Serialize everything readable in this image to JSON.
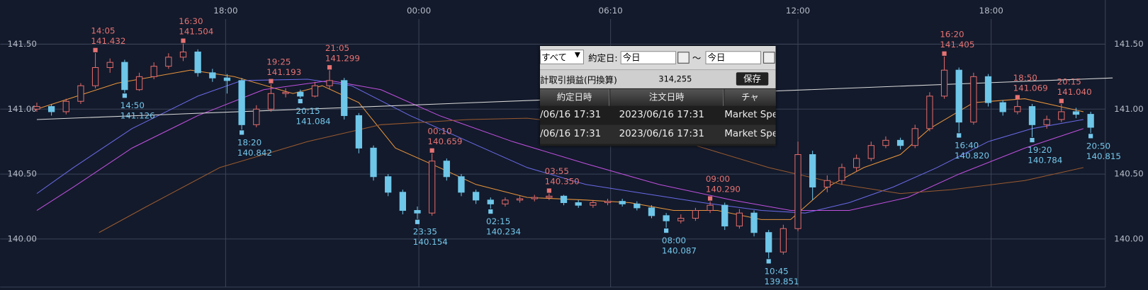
{
  "chart_data": {
    "type": "candlestick",
    "xlim": [
      -2.5,
      73
    ],
    "ylim": [
      139.63,
      141.84
    ],
    "xticks": [
      {
        "value": 12.9,
        "label": "18:00"
      },
      {
        "value": 26.1,
        "label": "00:00"
      },
      {
        "value": 39.2,
        "label": "06:10"
      },
      {
        "value": 52,
        "label": "12:00"
      },
      {
        "value": 65.2,
        "label": "18:00"
      }
    ],
    "yticks": [
      {
        "value": 140,
        "label": "140.00"
      },
      {
        "value": 140.5,
        "label": "140.50"
      },
      {
        "value": 141,
        "label": "141.00"
      },
      {
        "value": 141.5,
        "label": "141.50"
      }
    ],
    "grid": true,
    "up_color": "#e06a6a",
    "down_color": "#6ec6e8",
    "open": [
      141.0,
      141.02,
      140.98,
      141.06,
      141.18,
      141.32,
      141.36,
      141.15,
      141.25,
      141.33,
      141.4,
      141.44,
      141.28,
      141.24,
      141.22,
      140.88,
      141.0,
      141.12,
      141.13,
      141.1,
      141.18,
      141.22,
      140.95,
      140.7,
      140.48,
      140.36,
      140.22,
      140.2,
      140.6,
      140.48,
      140.36,
      140.3,
      140.27,
      140.3,
      140.31,
      140.32,
      140.33,
      140.28,
      140.26,
      140.28,
      140.29,
      140.27,
      140.24,
      140.18,
      140.14,
      140.16,
      140.22,
      140.26,
      140.1,
      140.2,
      140.05,
      139.9,
      140.08,
      140.65,
      140.4,
      140.45,
      140.55,
      140.62,
      140.72,
      140.76,
      140.72,
      140.85,
      141.1,
      141.3,
      140.9,
      141.25,
      141.05,
      140.98,
      141.02,
      140.88,
      140.92,
      140.98,
      140.96
    ],
    "high": [
      141.05,
      141.04,
      141.08,
      141.2,
      141.432,
      141.39,
      141.38,
      141.28,
      141.36,
      141.43,
      141.504,
      141.46,
      141.31,
      141.27,
      141.24,
      141.03,
      141.193,
      141.16,
      141.15,
      141.21,
      141.299,
      141.24,
      140.97,
      140.72,
      140.5,
      140.38,
      140.25,
      140.659,
      140.62,
      140.5,
      140.38,
      140.32,
      140.32,
      140.33,
      140.34,
      140.35,
      140.34,
      140.3,
      140.3,
      140.31,
      140.31,
      140.29,
      140.26,
      140.2,
      140.19,
      140.24,
      140.29,
      140.28,
      140.23,
      140.22,
      140.07,
      140.11,
      140.75,
      140.68,
      140.49,
      140.58,
      140.65,
      140.75,
      140.79,
      140.78,
      140.88,
      141.13,
      141.405,
      141.32,
      141.28,
      141.27,
      141.07,
      141.069,
      141.04,
      140.95,
      141.04,
      141.01,
      140.98
    ],
    "low": [
      140.98,
      140.95,
      140.96,
      141.04,
      141.16,
      141.28,
      141.126,
      141.14,
      141.23,
      141.31,
      141.37,
      141.25,
      141.21,
      141.12,
      140.842,
      140.86,
      140.98,
      141.09,
      141.084,
      141.09,
      141.15,
      140.92,
      140.66,
      140.45,
      140.33,
      140.19,
      140.154,
      140.18,
      140.45,
      140.33,
      140.27,
      140.234,
      140.25,
      140.28,
      140.29,
      140.3,
      140.26,
      140.24,
      140.24,
      140.26,
      140.25,
      140.22,
      140.16,
      140.087,
      140.12,
      140.14,
      140.2,
      140.07,
      140.08,
      140.02,
      139.851,
      139.88,
      140.06,
      140.3,
      140.36,
      140.42,
      140.52,
      140.6,
      140.7,
      140.69,
      140.7,
      140.83,
      141.08,
      140.82,
      140.88,
      141.02,
      140.95,
      140.96,
      140.784,
      140.85,
      140.9,
      140.93,
      140.815
    ],
    "close": [
      141.02,
      140.98,
      141.06,
      141.18,
      141.32,
      141.36,
      141.15,
      141.25,
      141.33,
      141.4,
      141.44,
      141.28,
      141.24,
      141.22,
      140.88,
      141.0,
      141.12,
      141.13,
      141.1,
      141.18,
      141.22,
      140.95,
      140.7,
      140.48,
      140.36,
      140.22,
      140.2,
      140.6,
      140.48,
      140.36,
      140.3,
      140.27,
      140.3,
      140.31,
      140.32,
      140.33,
      140.28,
      140.26,
      140.28,
      140.29,
      140.27,
      140.24,
      140.18,
      140.14,
      140.16,
      140.22,
      140.26,
      140.1,
      140.2,
      140.05,
      139.9,
      140.08,
      140.65,
      140.4,
      140.45,
      140.55,
      140.62,
      140.72,
      140.76,
      140.72,
      140.85,
      141.1,
      141.3,
      140.9,
      141.25,
      141.05,
      140.98,
      141.02,
      140.88,
      140.92,
      140.98,
      140.96,
      140.86
    ],
    "lines": [
      {
        "color": "#e8943c",
        "x": [
          0,
          5.5,
          10.5,
          13.5,
          17.5,
          19.5,
          22,
          24.5,
          27.5,
          30,
          33.5,
          37.5,
          40.5,
          43.5,
          46.5,
          49.5,
          51.5,
          54,
          56.5,
          59,
          61,
          64,
          67.5,
          71.5
        ],
        "values": [
          141.0,
          141.2,
          141.3,
          141.25,
          141.12,
          141.18,
          141.05,
          140.7,
          140.55,
          140.42,
          140.32,
          140.3,
          140.28,
          140.22,
          140.22,
          140.15,
          140.15,
          140.4,
          140.55,
          140.65,
          140.85,
          141.05,
          141.08,
          140.98
        ]
      },
      {
        "color": "#6a6ae8",
        "x": [
          0,
          2.5,
          6.5,
          11,
          14,
          18.5,
          21.5,
          25.5,
          29.5,
          33.5,
          37.5,
          41.5,
          45.5,
          49.5,
          52.5,
          55.5,
          58.5,
          61.5,
          65,
          68,
          71.5
        ],
        "values": [
          140.35,
          140.55,
          140.85,
          141.1,
          141.22,
          141.23,
          141.18,
          140.95,
          140.75,
          140.55,
          140.42,
          140.35,
          140.28,
          140.22,
          140.2,
          140.28,
          140.4,
          140.55,
          140.75,
          140.85,
          140.92
        ]
      },
      {
        "color": "#c050e0",
        "x": [
          0,
          2.5,
          6.5,
          11,
          15.5,
          20,
          23.5,
          27.5,
          32.5,
          37.5,
          42.5,
          47.5,
          51.5,
          55.5,
          59.5,
          63,
          67.5,
          71.5
        ],
        "values": [
          140.22,
          140.4,
          140.7,
          140.95,
          141.15,
          141.22,
          141.15,
          140.95,
          140.75,
          140.58,
          140.42,
          140.3,
          140.22,
          140.22,
          140.32,
          140.5,
          140.7,
          140.85
        ]
      },
      {
        "color": "#9a5a30",
        "x": [
          4.25,
          7.5,
          12.5,
          18.5,
          23.5,
          29.5,
          33.5,
          40,
          45,
          50,
          55,
          59,
          62.5,
          67.5,
          71.5
        ],
        "values": [
          140.05,
          140.25,
          140.55,
          140.75,
          140.88,
          140.92,
          140.93,
          140.85,
          140.72,
          140.55,
          140.42,
          140.35,
          140.38,
          140.45,
          140.55
        ]
      },
      {
        "color": "#d8d8d8",
        "x": [
          0,
          73.5
        ],
        "values": [
          140.92,
          141.24
        ]
      }
    ],
    "annotations": [
      {
        "time": "14:05",
        "price": 141.432,
        "candle": 4,
        "kind": "high"
      },
      {
        "time": "14:50",
        "price": 141.126,
        "candle": 6,
        "kind": "low"
      },
      {
        "time": "16:30",
        "price": 141.504,
        "candle": 10,
        "kind": "high"
      },
      {
        "time": "18:20",
        "price": 140.842,
        "candle": 14,
        "kind": "low"
      },
      {
        "time": "19:25",
        "price": 141.193,
        "candle": 16,
        "kind": "high"
      },
      {
        "time": "20:15",
        "price": 141.084,
        "candle": 18,
        "kind": "low"
      },
      {
        "time": "21:05",
        "price": 141.299,
        "candle": 20,
        "kind": "high"
      },
      {
        "time": "23:35",
        "price": 140.154,
        "candle": 26,
        "kind": "low"
      },
      {
        "time": "00:10",
        "price": 140.659,
        "candle": 27,
        "kind": "high"
      },
      {
        "time": "02:15",
        "price": 140.234,
        "candle": 31,
        "kind": "low"
      },
      {
        "time": "03:55",
        "price": 140.35,
        "price_label": "140.350",
        "candle": 35,
        "kind": "high"
      },
      {
        "time": "08:00",
        "price": 140.087,
        "candle": 43,
        "kind": "low"
      },
      {
        "time": "09:00",
        "price": 140.29,
        "price_label": "140.290",
        "candle": 46,
        "kind": "high"
      },
      {
        "time": "10:45",
        "price": 139.851,
        "candle": 50,
        "kind": "low"
      },
      {
        "time": "16:20",
        "price": 141.405,
        "candle": 62,
        "kind": "high"
      },
      {
        "time": "16:40",
        "price": 140.82,
        "price_label": "140.820",
        "candle": 63,
        "kind": "low"
      },
      {
        "time": "18:50",
        "price": 141.069,
        "candle": 67,
        "kind": "high"
      },
      {
        "time": "19:20",
        "price": 140.784,
        "candle": 68,
        "kind": "low"
      },
      {
        "time": "20:15",
        "price": 141.04,
        "price_label": "141.040",
        "candle": 70,
        "kind": "high"
      },
      {
        "time": "20:50",
        "price": 140.815,
        "candle": 72,
        "kind": "low"
      }
    ]
  },
  "dialog": {
    "filter": "すべて",
    "date_label": "約定日:",
    "from": "今日",
    "separator": "～",
    "to": "今日",
    "pl_label": "計取引損益(円換算)",
    "pl_value": "314,255",
    "save": "保存",
    "columns": [
      "約定日時",
      "注文日時",
      "チャ"
    ],
    "rows": [
      [
        "/06/16 17:31",
        "2023/06/16 17:31",
        "Market Spe"
      ],
      [
        "/06/16 17:31",
        "2023/06/16 17:31",
        "Market Spe"
      ]
    ]
  }
}
